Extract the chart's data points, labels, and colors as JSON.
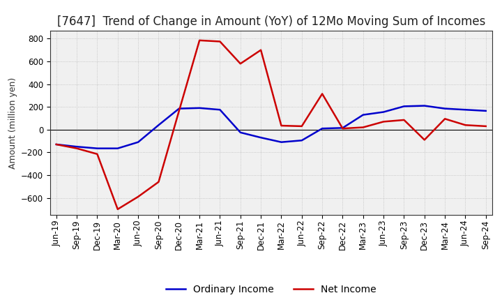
{
  "title": "[7647]  Trend of Change in Amount (YoY) of 12Mo Moving Sum of Incomes",
  "ylabel": "Amount (million yen)",
  "background_color": "#ffffff",
  "plot_bg_color": "#f0f0f0",
  "grid_color": "#bbbbbb",
  "x_labels": [
    "Jun-19",
    "Sep-19",
    "Dec-19",
    "Mar-20",
    "Jun-20",
    "Sep-20",
    "Dec-20",
    "Mar-21",
    "Jun-21",
    "Sep-21",
    "Dec-21",
    "Mar-22",
    "Jun-22",
    "Sep-22",
    "Dec-22",
    "Mar-23",
    "Jun-23",
    "Sep-23",
    "Dec-23",
    "Mar-24",
    "Jun-24",
    "Sep-24"
  ],
  "ordinary_income": [
    -130,
    -150,
    -165,
    -165,
    -110,
    40,
    185,
    190,
    175,
    -25,
    -70,
    -110,
    -95,
    10,
    15,
    130,
    155,
    205,
    210,
    185,
    175,
    165
  ],
  "net_income": [
    -130,
    -165,
    -215,
    -700,
    -590,
    -460,
    165,
    785,
    775,
    580,
    700,
    35,
    30,
    315,
    10,
    20,
    70,
    85,
    -90,
    95,
    40,
    30
  ],
  "ordinary_color": "#0000cc",
  "net_color": "#cc0000",
  "ylim": [
    -750,
    870
  ],
  "yticks": [
    -600,
    -400,
    -200,
    0,
    200,
    400,
    600,
    800
  ],
  "line_width": 1.8,
  "title_fontsize": 12,
  "legend_fontsize": 10,
  "tick_fontsize": 8.5
}
